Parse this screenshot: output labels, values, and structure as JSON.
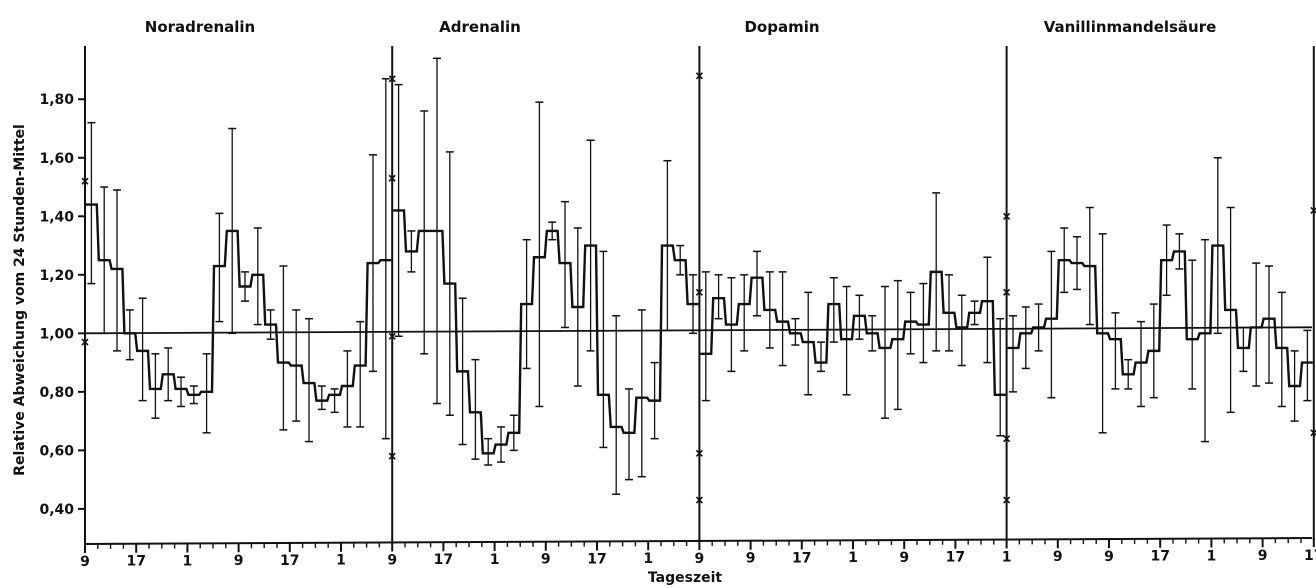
{
  "chart_data": {
    "type": "line",
    "subtype": "step with error bars",
    "ylabel": "Relative Abweichung vom 24 Stunden-Mittel",
    "xlabel": "Tageszeit",
    "ylim": [
      0.28,
      1.96
    ],
    "yticks": [
      "1,80",
      "1,60",
      "1,40",
      "1,20",
      "1,00",
      "0,80",
      "0,60",
      "0,40"
    ],
    "ytick_values": [
      1.8,
      1.6,
      1.4,
      1.2,
      1.0,
      0.8,
      0.6,
      0.4
    ],
    "reference_line": 1.0,
    "x_unit_hours": "2 h per step, 48 h per panel",
    "xtick_labels": [
      "9",
      "17",
      "1",
      "9",
      "17",
      "1",
      "9",
      "17",
      "1",
      "9",
      "17",
      "1",
      "9",
      "9",
      "17",
      "1",
      "9",
      "17",
      "1",
      "9",
      "9",
      "17",
      "1",
      "9",
      "17",
      "1",
      "9"
    ],
    "panels": [
      {
        "title": "Noradrenalin",
        "values": [
          1.44,
          1.25,
          1.22,
          1.0,
          0.94,
          0.81,
          0.86,
          0.81,
          0.79,
          0.8,
          1.23,
          1.35,
          1.16,
          1.2,
          1.03,
          0.9,
          0.89,
          0.83,
          0.77,
          0.79,
          0.82,
          0.89,
          1.24,
          1.25
        ],
        "upper": [
          1.72,
          1.5,
          1.49,
          1.08,
          1.12,
          0.93,
          0.95,
          0.85,
          0.82,
          0.93,
          1.41,
          1.7,
          1.21,
          1.36,
          1.08,
          1.23,
          1.08,
          1.05,
          0.82,
          0.81,
          0.94,
          1.04,
          1.61,
          1.87
        ],
        "lower": [
          1.17,
          1.0,
          0.94,
          0.91,
          0.77,
          0.71,
          0.77,
          0.75,
          0.76,
          0.66,
          1.04,
          1.0,
          1.11,
          1.03,
          0.98,
          0.67,
          0.7,
          0.63,
          0.74,
          0.73,
          0.68,
          0.68,
          0.87,
          0.64
        ],
        "marks": [
          0.97,
          1.52
        ]
      },
      {
        "title": "Adrenalin",
        "values": [
          1.42,
          1.28,
          1.35,
          1.35,
          1.17,
          0.87,
          0.73,
          0.59,
          0.62,
          0.66,
          1.1,
          1.26,
          1.35,
          1.24,
          1.09,
          1.3,
          0.79,
          0.68,
          0.66,
          0.78,
          0.77,
          1.3,
          1.25,
          1.1
        ],
        "upper": [
          1.85,
          1.35,
          1.76,
          1.94,
          1.62,
          1.12,
          0.91,
          0.64,
          0.68,
          0.72,
          1.32,
          1.79,
          1.38,
          1.45,
          1.36,
          1.66,
          1.28,
          1.06,
          0.81,
          1.08,
          0.9,
          1.59,
          1.3,
          1.2
        ],
        "lower": [
          0.99,
          1.21,
          0.93,
          0.76,
          0.72,
          0.62,
          0.57,
          0.55,
          0.56,
          0.6,
          0.88,
          0.75,
          1.32,
          1.02,
          0.82,
          0.94,
          0.61,
          0.45,
          0.5,
          0.51,
          0.64,
          1.01,
          1.2,
          1.0
        ],
        "marks": [
          1.87,
          1.53,
          0.99,
          0.58
        ]
      },
      {
        "title": "Dopamin",
        "values": [
          0.93,
          1.12,
          1.03,
          1.1,
          1.19,
          1.08,
          1.04,
          1.0,
          0.97,
          0.9,
          1.1,
          0.98,
          1.06,
          1.0,
          0.95,
          0.98,
          1.04,
          1.03,
          1.21,
          1.07,
          1.02,
          1.07,
          1.11,
          0.79
        ],
        "upper": [
          1.21,
          1.2,
          1.19,
          1.2,
          1.28,
          1.21,
          1.21,
          1.05,
          1.14,
          0.97,
          1.19,
          1.16,
          1.13,
          1.06,
          1.16,
          1.18,
          1.14,
          1.17,
          1.48,
          1.2,
          1.13,
          1.11,
          1.26,
          1.05
        ],
        "lower": [
          0.77,
          1.05,
          0.87,
          0.94,
          1.06,
          0.95,
          0.89,
          0.96,
          0.79,
          0.87,
          0.97,
          0.79,
          0.98,
          0.94,
          0.71,
          0.74,
          0.93,
          0.9,
          0.94,
          0.94,
          0.89,
          1.03,
          0.9,
          0.65
        ],
        "marks": [
          1.88,
          1.14,
          0.59,
          0.43
        ]
      },
      {
        "title": "Vanillinmandelsäure",
        "values": [
          0.95,
          1.0,
          1.02,
          1.05,
          1.25,
          1.24,
          1.23,
          1.0,
          0.98,
          0.86,
          0.9,
          0.94,
          1.25,
          1.28,
          0.98,
          1.0,
          1.3,
          1.08,
          0.95,
          1.02,
          1.05,
          0.95,
          0.82,
          0.9
        ],
        "upper": [
          1.06,
          1.09,
          1.1,
          1.28,
          1.36,
          1.33,
          1.43,
          1.34,
          1.07,
          0.91,
          1.04,
          1.1,
          1.37,
          1.34,
          1.25,
          1.32,
          1.6,
          1.43,
          1.02,
          1.24,
          1.23,
          1.14,
          0.94,
          1.01
        ],
        "lower": [
          0.8,
          0.88,
          0.94,
          0.78,
          1.14,
          1.15,
          1.03,
          0.66,
          0.81,
          0.81,
          0.75,
          0.78,
          1.13,
          1.22,
          0.81,
          0.63,
          1.0,
          0.73,
          0.87,
          0.82,
          0.83,
          0.75,
          0.7,
          0.77
        ],
        "marks": [
          1.4,
          1.14,
          0.64,
          0.43,
          1.42,
          0.66
        ]
      }
    ]
  }
}
